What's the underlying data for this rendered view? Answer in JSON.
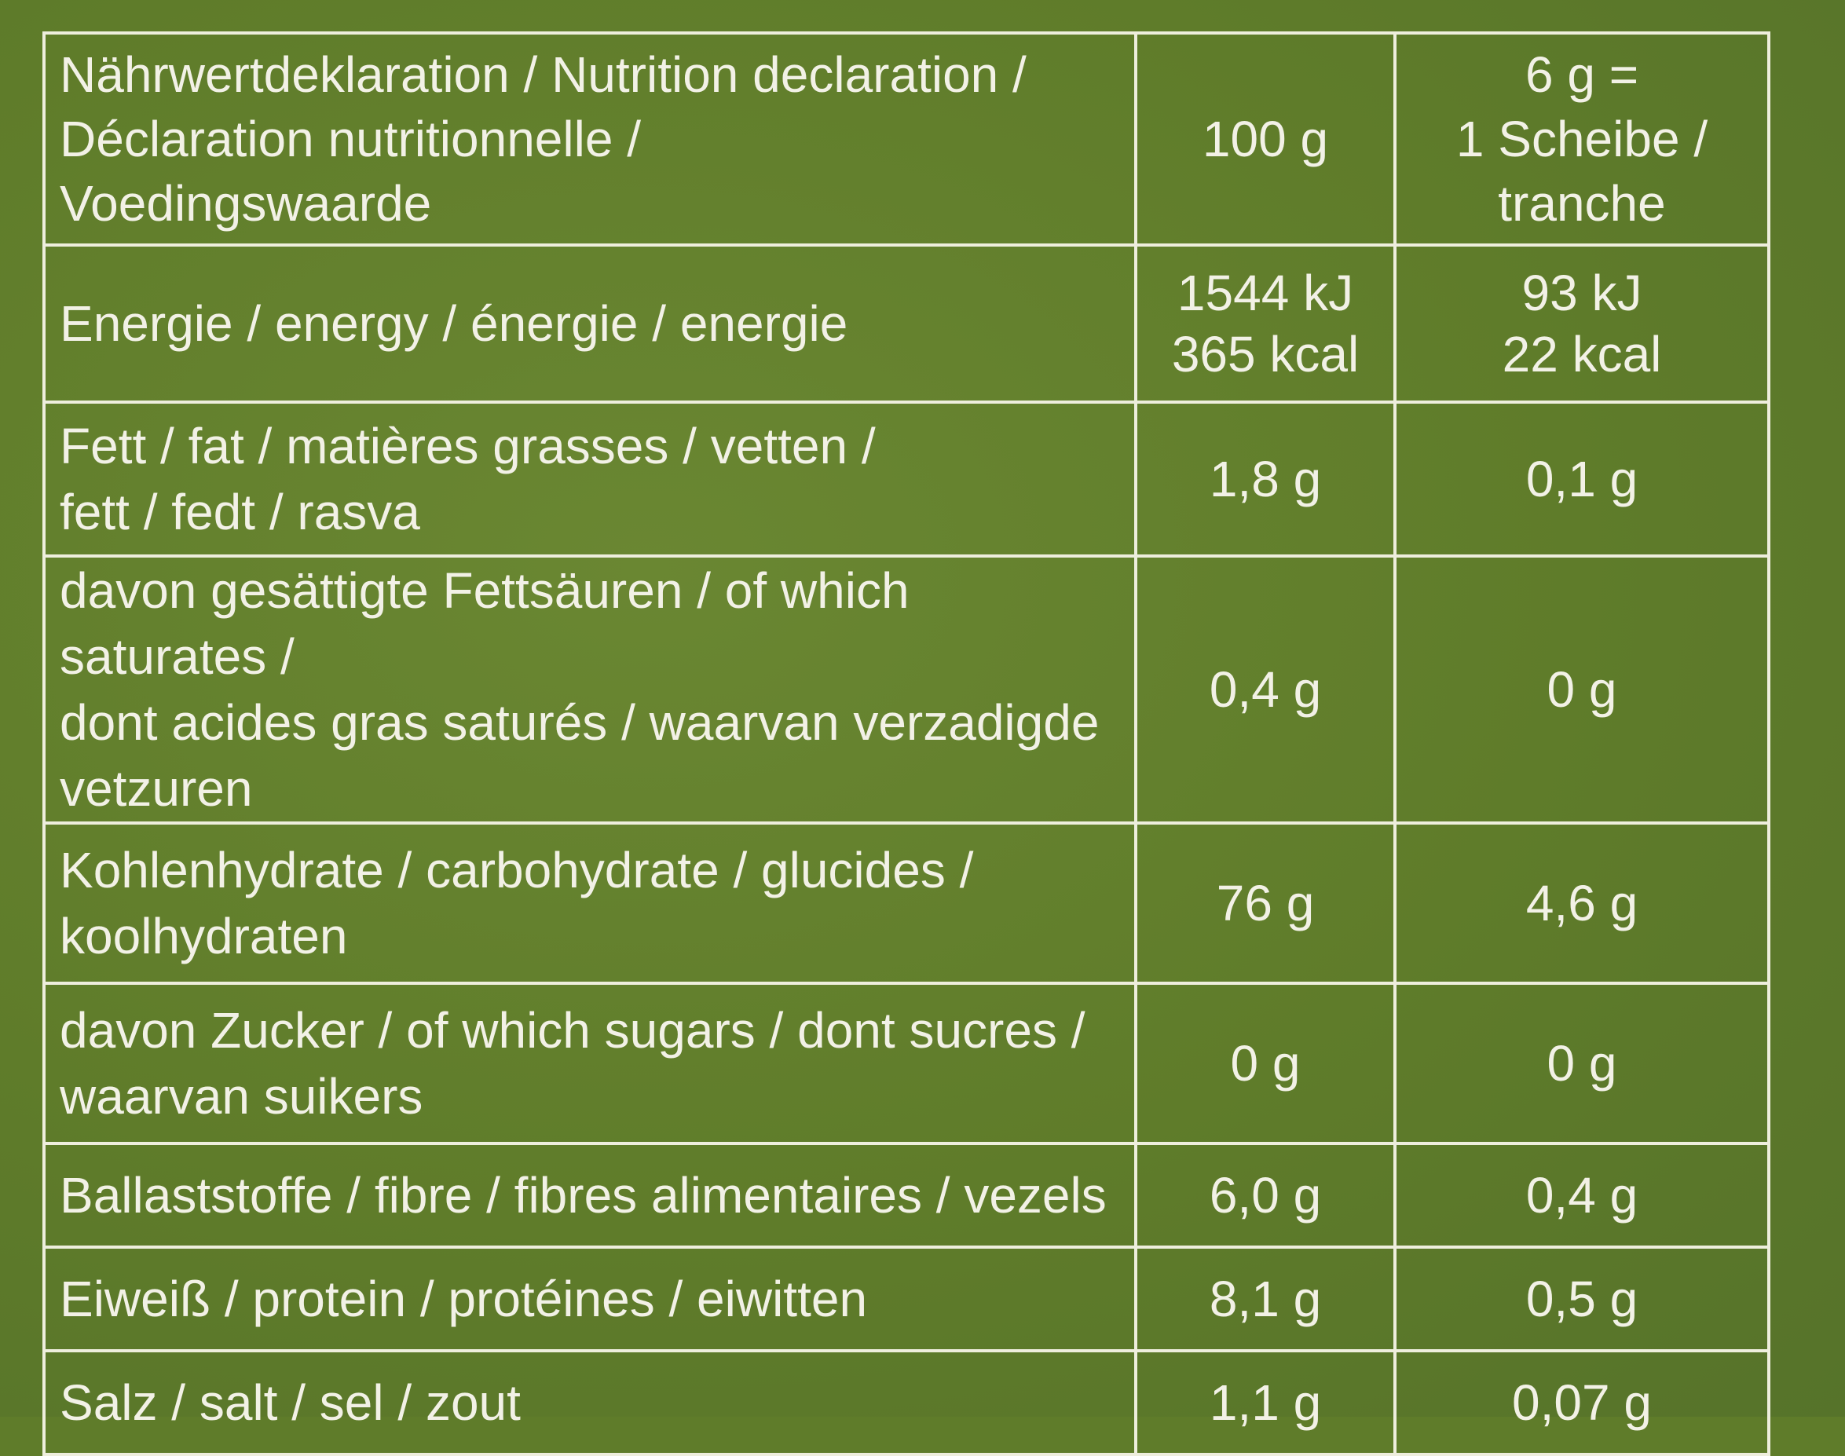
{
  "table": {
    "header": {
      "label_lines": [
        "Nährwertdeklaration / Nutrition declaration /",
        "Déclaration nutritionnelle /",
        "Voedingswaarde"
      ],
      "col_100g": "100 g",
      "col_portion_lines": [
        "6 g =",
        "1 Scheibe /",
        "tranche"
      ]
    },
    "rows": [
      {
        "label_lines": [
          "Energie / energy / énergie / energie"
        ],
        "per_100g_lines": [
          "1544 kJ",
          "365 kcal"
        ],
        "per_portion_lines": [
          "93 kJ",
          "22 kcal"
        ]
      },
      {
        "label_lines": [
          "Fett / fat / matières grasses / vetten /",
          "fett / fedt / rasva"
        ],
        "per_100g_lines": [
          "1,8 g"
        ],
        "per_portion_lines": [
          "0,1 g"
        ]
      },
      {
        "label_lines": [
          "davon gesättigte Fettsäuren / of which saturates /",
          "dont acides gras saturés / waarvan verzadigde",
          "vetzuren"
        ],
        "per_100g_lines": [
          "0,4 g"
        ],
        "per_portion_lines": [
          "0 g"
        ]
      },
      {
        "label_lines": [
          "Kohlenhydrate / carbohydrate / glucides /",
          "koolhydraten"
        ],
        "per_100g_lines": [
          "76 g"
        ],
        "per_portion_lines": [
          "4,6 g"
        ]
      },
      {
        "label_lines": [
          "davon Zucker / of which sugars / dont sucres /",
          "waarvan suikers"
        ],
        "per_100g_lines": [
          "0 g"
        ],
        "per_portion_lines": [
          "0 g"
        ]
      },
      {
        "label_lines": [
          "Ballaststoffe / fibre / fibres alimentaires / vezels"
        ],
        "per_100g_lines": [
          "6,0 g"
        ],
        "per_portion_lines": [
          "0,4 g"
        ]
      },
      {
        "label_lines": [
          "Eiweiß / protein / protéines / eiwitten"
        ],
        "per_100g_lines": [
          "8,1 g"
        ],
        "per_portion_lines": [
          "0,5 g"
        ]
      },
      {
        "label_lines": [
          "Salz / salt / sel / zout"
        ],
        "per_100g_lines": [
          "1,1 g"
        ],
        "per_portion_lines": [
          "0,07 g"
        ]
      }
    ],
    "colors": {
      "background": "#5f7c2a",
      "text": "#f2f1e6",
      "lines": "#eeeedd"
    }
  }
}
